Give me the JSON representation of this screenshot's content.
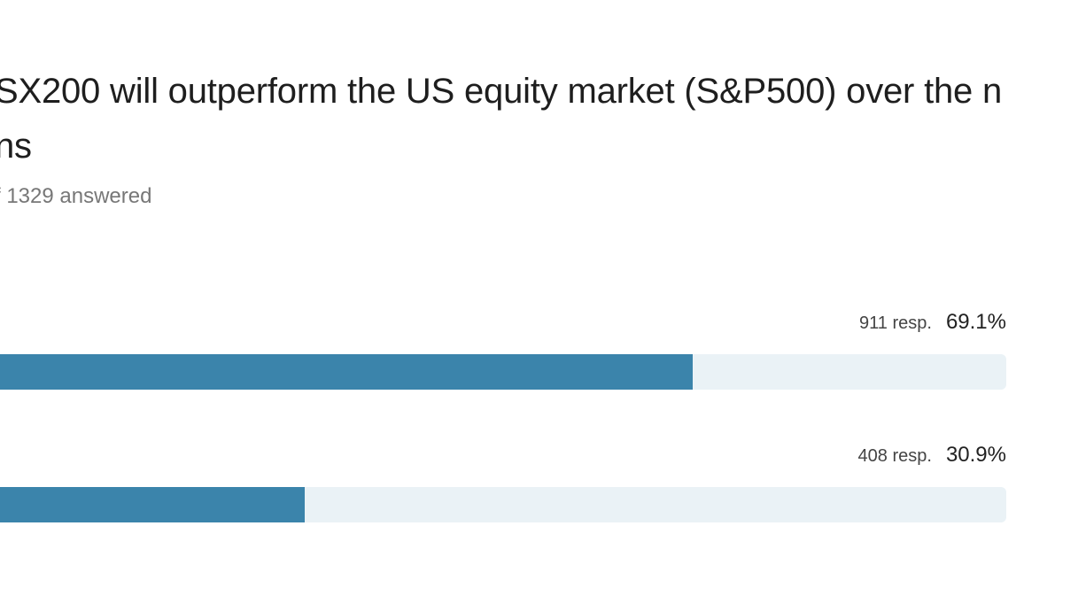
{
  "question": {
    "title_lines": [
      "SX200 will outperform the US equity market (S&P500) over the n",
      "ns"
    ],
    "answered_text": "f 1329 answered"
  },
  "options": [
    {
      "responses_text": "911 resp.",
      "percent_text": "69.1%",
      "fill_fraction": 0.691
    },
    {
      "responses_text": "408 resp.",
      "percent_text": "30.9%",
      "fill_fraction": 0.309
    }
  ],
  "colors": {
    "bar_fill": "#3b84ab",
    "bar_track": "#eaf2f6"
  }
}
